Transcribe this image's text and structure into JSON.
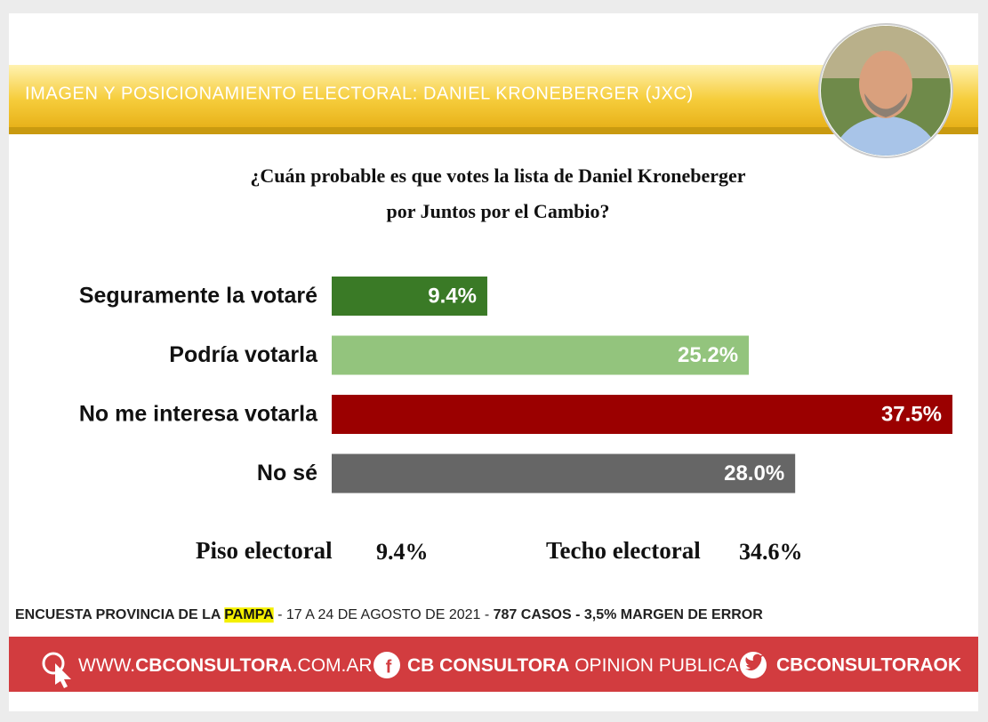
{
  "header": {
    "title": "IMAGEN Y POSICIONAMIENTO ELECTORAL: DANIEL KRONEBERGER  (JXC)"
  },
  "chart_data": {
    "type": "bar",
    "orientation": "horizontal",
    "title": [
      "¿Cuán probable es que votes la lista de Daniel Kroneberger",
      "por Juntos por el Cambio?"
    ],
    "categories": [
      "Seguramente la votaré",
      "Podría votarla",
      "No me interesa votarla",
      "No sé"
    ],
    "values": [
      9.4,
      25.2,
      37.5,
      28.0
    ],
    "value_labels": [
      "9.4%",
      "25.2%",
      "37.5%",
      "28.0%"
    ],
    "colors": [
      "#3a7a26",
      "#93c47d",
      "#9b0000",
      "#666666"
    ]
  },
  "summary": [
    {
      "label": "Piso electoral",
      "value": "9.4%"
    },
    {
      "label": "Techo electoral",
      "value": "34.6%"
    }
  ],
  "survey_note": [
    "ENCUESTA PROVINCIA DE LA ",
    "PAMPA",
    " - 17 A 24 DE AGOSTO DE 2021 - ",
    "787 CASOS - 3,5% MARGEN DE ERROR"
  ],
  "footer": {
    "website": [
      "WWW.",
      "CBCONSULTORA",
      ".COM.AR"
    ],
    "facebook": [
      "CB CONSULTORA",
      " OPINION PUBLICA"
    ],
    "twitter": "CBCONSULTORAOK"
  }
}
